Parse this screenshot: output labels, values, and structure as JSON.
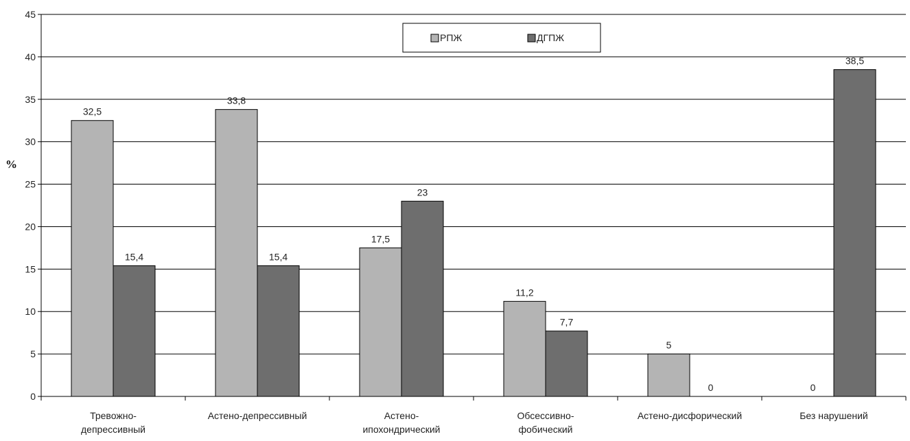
{
  "chart_data": {
    "type": "bar",
    "title": "",
    "xlabel": "",
    "ylabel": "%",
    "ylim": [
      0,
      45
    ],
    "yticks": [
      0,
      5,
      10,
      15,
      20,
      25,
      30,
      35,
      40,
      45
    ],
    "grid": true,
    "legend_position": "top-center",
    "categories": [
      [
        "Тревожно-",
        "депрессивный"
      ],
      [
        "Астено-депрессивный"
      ],
      [
        "Астено-",
        "ипохондрический"
      ],
      [
        "Обсессивно-",
        "фобический"
      ],
      [
        "Астено-дисфорический"
      ],
      [
        "Без нарушений"
      ]
    ],
    "series": [
      {
        "name": "РПЖ",
        "color": "#b4b4b4",
        "values": [
          32.5,
          33.8,
          17.5,
          11.2,
          5,
          0
        ],
        "labels": [
          "32,5",
          "33,8",
          "17,5",
          "11,2",
          "5",
          ""
        ]
      },
      {
        "name": "ДГПЖ",
        "color": "#6e6e6e",
        "values": [
          15.4,
          15.4,
          23,
          7.7,
          0,
          38.5
        ],
        "labels": [
          "15,4",
          "15,4",
          "23",
          "7,7",
          "0",
          "38,5"
        ]
      }
    ],
    "extra_labels": [
      {
        "category_index": 5,
        "text": "0"
      }
    ]
  }
}
